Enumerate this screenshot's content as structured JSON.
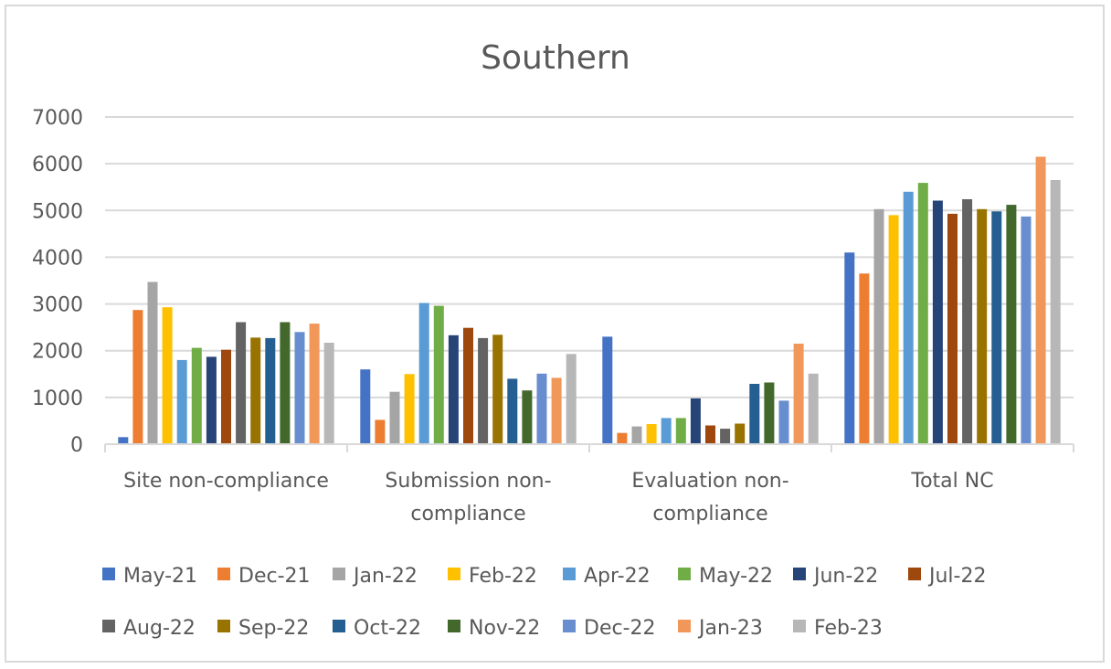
{
  "chart_data": {
    "type": "bar",
    "title": "Southern",
    "xlabel": "",
    "ylabel": "",
    "ylim": [
      0,
      7000
    ],
    "yticks": [
      0,
      1000,
      2000,
      3000,
      4000,
      5000,
      6000,
      7000
    ],
    "grid": true,
    "legend_position": "bottom",
    "categories": [
      [
        "Site non-compliance"
      ],
      [
        "Submission non-",
        "compliance"
      ],
      [
        "Evaluation non-",
        "compliance"
      ],
      [
        "Total NC"
      ]
    ],
    "series": [
      {
        "name": "May-21",
        "color": "#4472c4",
        "values": [
          150,
          1600,
          2300,
          4100
        ]
      },
      {
        "name": "Dec-21",
        "color": "#ed7d31",
        "values": [
          2870,
          520,
          240,
          3650
        ]
      },
      {
        "name": "Jan-22",
        "color": "#a5a5a5",
        "values": [
          3470,
          1120,
          380,
          5030
        ]
      },
      {
        "name": "Feb-22",
        "color": "#ffc000",
        "values": [
          2930,
          1500,
          430,
          4900
        ]
      },
      {
        "name": "Apr-22",
        "color": "#5b9bd5",
        "values": [
          1800,
          3020,
          560,
          5400
        ]
      },
      {
        "name": "May-22",
        "color": "#70ad47",
        "values": [
          2060,
          2960,
          560,
          5590
        ]
      },
      {
        "name": "Jun-22",
        "color": "#264478",
        "values": [
          1870,
          2330,
          980,
          5210
        ]
      },
      {
        "name": "Jul-22",
        "color": "#9e480e",
        "values": [
          2020,
          2490,
          400,
          4930
        ]
      },
      {
        "name": "Aug-22",
        "color": "#636363",
        "values": [
          2610,
          2270,
          330,
          5240
        ]
      },
      {
        "name": "Sep-22",
        "color": "#997300",
        "values": [
          2280,
          2340,
          440,
          5030
        ]
      },
      {
        "name": "Oct-22",
        "color": "#255e91",
        "values": [
          2270,
          1400,
          1290,
          4980
        ]
      },
      {
        "name": "Nov-22",
        "color": "#43682b",
        "values": [
          2610,
          1150,
          1320,
          5120
        ]
      },
      {
        "name": "Dec-22",
        "color": "#698ed0",
        "values": [
          2400,
          1510,
          930,
          4870
        ]
      },
      {
        "name": "Jan-23",
        "color": "#f1975a",
        "values": [
          2580,
          1420,
          2150,
          6150
        ]
      },
      {
        "name": "Feb-23",
        "color": "#b7b7b7",
        "values": [
          2170,
          1930,
          1510,
          5650
        ]
      }
    ]
  }
}
